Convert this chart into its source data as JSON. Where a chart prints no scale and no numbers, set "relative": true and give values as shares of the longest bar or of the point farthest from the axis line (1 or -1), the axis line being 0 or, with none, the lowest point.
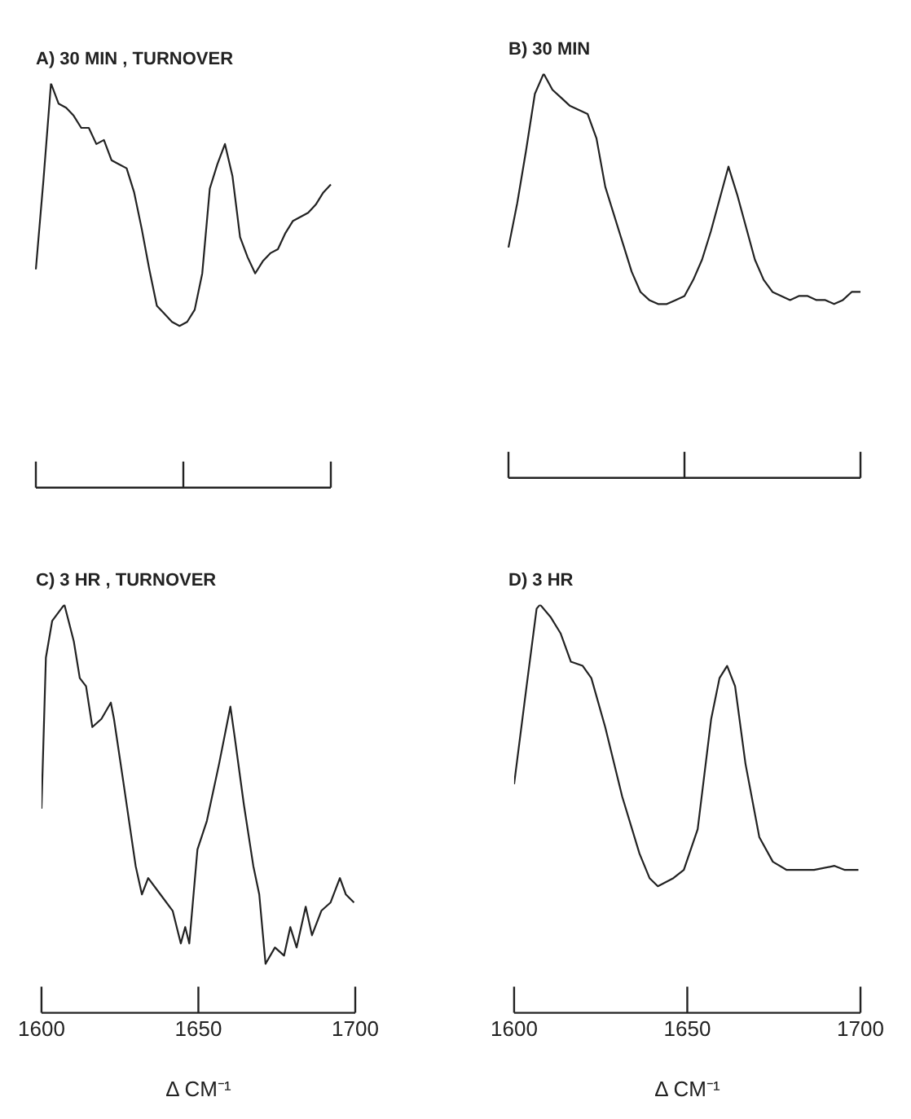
{
  "chart_data": [
    {
      "type": "line",
      "title": "A) 30 MIN , TURNOVER",
      "relative": true,
      "marker": "none",
      "categories": [
        null,
        null,
        null,
        null,
        null,
        null,
        null,
        null,
        null,
        null,
        null,
        null,
        null,
        null,
        null,
        null,
        null,
        null,
        null,
        null,
        null,
        null,
        null,
        null,
        null,
        null,
        null,
        null,
        null,
        null,
        null,
        null,
        null,
        null,
        null,
        null,
        null,
        null,
        null,
        null
      ],
      "series": [
        {
          "color": "#222222",
          "values": [
            0.54,
            0.76,
            1.0,
            0.95,
            0.94,
            0.92,
            0.89,
            0.89,
            0.85,
            0.86,
            0.81,
            0.8,
            0.79,
            0.73,
            0.64,
            0.54,
            0.45,
            0.43,
            0.41,
            0.4,
            0.41,
            0.44,
            0.53,
            0.74,
            0.8,
            0.85,
            0.77,
            0.62,
            0.57,
            0.53,
            0.56,
            0.58,
            0.59,
            0.63,
            0.66,
            0.67,
            0.68,
            0.7,
            0.73,
            0.75
          ]
        }
      ]
    },
    {
      "type": "line",
      "title": "B) 30 MIN",
      "relative": true,
      "marker": "none",
      "categories": [
        null,
        null,
        null,
        null,
        null,
        null,
        null,
        null,
        null,
        null,
        null,
        null,
        null,
        null,
        null,
        null,
        null,
        null,
        null,
        null,
        null,
        null,
        null,
        null,
        null,
        null,
        null,
        null,
        null,
        null,
        null,
        null,
        null,
        null,
        null,
        null,
        null,
        null,
        null,
        null,
        null
      ],
      "series": [
        {
          "color": "#222222",
          "values": [
            0.57,
            0.68,
            0.81,
            0.95,
            1.0,
            0.96,
            0.94,
            0.92,
            0.91,
            0.9,
            0.84,
            0.72,
            0.65,
            0.58,
            0.51,
            0.46,
            0.44,
            0.43,
            0.43,
            0.44,
            0.45,
            0.49,
            0.54,
            0.61,
            0.69,
            0.77,
            0.7,
            0.62,
            0.54,
            0.49,
            0.46,
            0.45,
            0.44,
            0.45,
            0.45,
            0.44,
            0.44,
            0.43,
            0.44,
            0.46,
            0.46
          ]
        }
      ]
    },
    {
      "type": "line",
      "title": "C) 3 HR , TURNOVER",
      "xlabel": "Δ CM⁻¹",
      "relative": true,
      "xlim": [
        1600,
        1700
      ],
      "xticks": [
        1600,
        1650,
        1700
      ],
      "marker": "none",
      "x": [
        1600,
        1601.4,
        1603.4,
        1606.3,
        1607.3,
        1610.3,
        1612.2,
        1614.2,
        1616.2,
        1619.1,
        1622.1,
        1623.1,
        1626,
        1630,
        1632,
        1634,
        1637.9,
        1641.8,
        1644.4,
        1645.8,
        1647.1,
        1649.7,
        1652.7,
        1656.6,
        1660.2,
        1661.5,
        1664.5,
        1667.5,
        1669.4,
        1671.4,
        1674.4,
        1677.3,
        1679.3,
        1681.3,
        1684.2,
        1686.2,
        1689.2,
        1692.1,
        1695.1,
        1697,
        1699.6
      ],
      "series": [
        {
          "color": "#222222",
          "values": [
            0.5,
            0.87,
            0.96,
            0.99,
            1.0,
            0.91,
            0.82,
            0.8,
            0.7,
            0.72,
            0.76,
            0.72,
            0.57,
            0.36,
            0.29,
            0.33,
            0.29,
            0.25,
            0.17,
            0.21,
            0.17,
            0.4,
            0.47,
            0.61,
            0.75,
            0.68,
            0.51,
            0.36,
            0.29,
            0.12,
            0.16,
            0.14,
            0.21,
            0.16,
            0.26,
            0.19,
            0.25,
            0.27,
            0.33,
            0.29,
            0.27
          ]
        }
      ]
    },
    {
      "type": "line",
      "title": "D) 3 HR",
      "xlabel": "Δ CM⁻¹",
      "relative": true,
      "xlim": [
        1600,
        1700
      ],
      "xticks": [
        1600,
        1650,
        1700
      ],
      "marker": "none",
      "x": [
        1600,
        1603.6,
        1606.5,
        1607.5,
        1610.5,
        1613.4,
        1616.4,
        1619.8,
        1622.3,
        1626.3,
        1631.2,
        1636.2,
        1639.1,
        1641.5,
        1646,
        1649,
        1653,
        1656.9,
        1659.3,
        1661.5,
        1663.8,
        1666.8,
        1670.8,
        1674.7,
        1678.7,
        1686.6,
        1692.5,
        1695.5,
        1699.4
      ],
      "series": [
        {
          "color": "#222222",
          "values": [
            0.56,
            0.8,
            0.99,
            1.0,
            0.97,
            0.93,
            0.86,
            0.85,
            0.82,
            0.7,
            0.53,
            0.39,
            0.33,
            0.31,
            0.33,
            0.35,
            0.45,
            0.72,
            0.82,
            0.85,
            0.8,
            0.61,
            0.43,
            0.37,
            0.35,
            0.35,
            0.36,
            0.35,
            0.35
          ]
        }
      ]
    }
  ]
}
